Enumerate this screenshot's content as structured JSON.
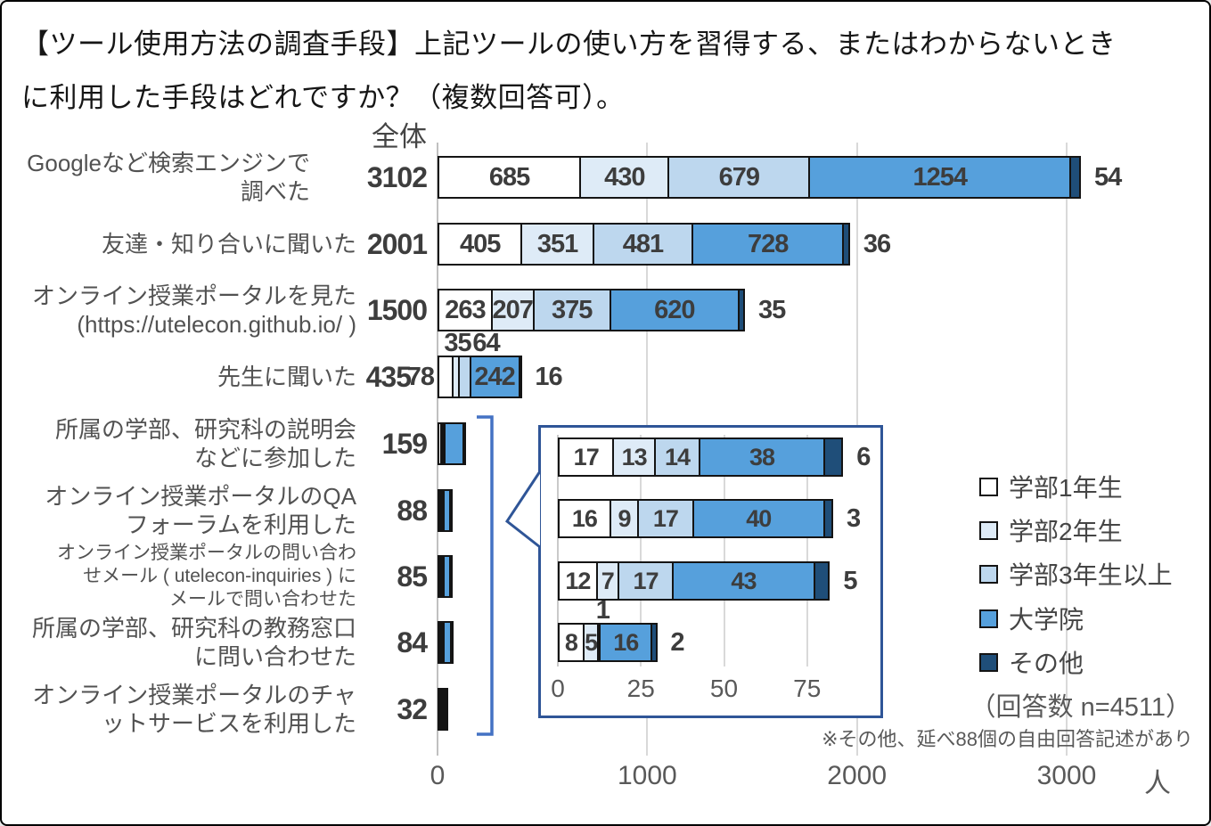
{
  "page": {
    "title_line1": "【ツール使用方法の調査手段】上記ツールの使い方を習得する、またはわからないとき",
    "title_line2": "に利用した手段はどれですか？（複数回答可）。"
  },
  "chart": {
    "column_header": "全体",
    "unit": "人",
    "note_n": "（回答数 n=4511）",
    "footnote": "※その他、延べ88個の自由回答記述があり",
    "legend": [
      {
        "label": "学部1年生",
        "color": "#FFFFFF"
      },
      {
        "label": "学部2年生",
        "color": "#DEEBF7"
      },
      {
        "label": "学部3年生以上",
        "color": "#BDD7EE"
      },
      {
        "label": "大学院",
        "color": "#56A0DC"
      },
      {
        "label": "その他",
        "color": "#1F4E79"
      }
    ]
  },
  "colors": {
    "segment_fills": [
      "#FFFFFF",
      "#DEEBF7",
      "#BDD7EE",
      "#56A0DC",
      "#1F4E79"
    ],
    "bar_border": "#141414",
    "gridline": "#D9D9D9",
    "axis_line": "#C0C0C0",
    "value_text": "#3D3D3D",
    "gray_text": "#595959",
    "bracket_blue": "#4472C4",
    "inset_border_blue": "#2F5597"
  },
  "chart_data": {
    "type": "bar",
    "stacked": true,
    "orientation": "horizontal",
    "series": [
      "学部1年生",
      "学部2年生",
      "学部3年生以上",
      "大学院",
      "その他"
    ],
    "x_axis": {
      "ticks": [
        0,
        1000,
        2000,
        3000
      ],
      "unit": "人",
      "range": [
        0,
        3000
      ]
    },
    "legend_position": "right",
    "rows": [
      {
        "category": "Googleなど検索エンジンで調べた",
        "label_lines": [
          "Googleなど検索エンジンで調べた"
        ],
        "total": 3102,
        "values": [
          685,
          430,
          679,
          1254,
          54
        ],
        "label_pos": [
          "in",
          "in",
          "in",
          "in",
          "end"
        ]
      },
      {
        "category": "友達・知り合いに聞いた",
        "label_lines": [
          "友達・知り合いに聞いた"
        ],
        "total": 2001,
        "values": [
          405,
          351,
          481,
          728,
          36
        ],
        "label_pos": [
          "in",
          "in",
          "in",
          "in",
          "end"
        ]
      },
      {
        "category": "オンライン授業ポータルを見た (https://utelecon.github.io/ )",
        "label_lines": [
          "オンライン授業ポータルを見た",
          "(https://utelecon.github.io/ )"
        ],
        "total": 1500,
        "values": [
          263,
          207,
          375,
          620,
          35
        ],
        "label_pos": [
          "in",
          "in",
          "in",
          "in",
          "end"
        ]
      },
      {
        "category": "先生に聞いた",
        "label_lines": [
          "先生に聞いた"
        ],
        "total": 435,
        "values": [
          78,
          35,
          64,
          242,
          16
        ],
        "label_pos": [
          "left",
          "above",
          "above",
          "in",
          "end"
        ]
      },
      {
        "category": "所属の学部、研究科の説明会などに参加した",
        "label_lines": [
          "所属の学部、研究科の説明会",
          "などに参加した"
        ],
        "total": 159,
        "values": null,
        "values_visual_estimate": [
          20,
          15,
          20,
          95,
          9
        ],
        "label_pos": [
          "none",
          "none",
          "none",
          "none",
          "none"
        ]
      },
      {
        "category": "オンライン授業ポータルのQAフォーラムを利用した",
        "label_lines": [
          "オンライン授業ポータルのQA",
          "フォーラムを利用した"
        ],
        "total": 88,
        "values": [
          17,
          13,
          14,
          38,
          6
        ],
        "label_pos": [
          "none",
          "none",
          "none",
          "none",
          "none"
        ]
      },
      {
        "category": "オンライン授業ポータルの問い合わせメール ( utelecon-inquiries ) にメールで問い合わせた",
        "label_lines": [
          "オンライン授業ポータルの問い合わ",
          "せメール ( utelecon-inquiries ) に",
          "メールで問い合わせた"
        ],
        "total": 85,
        "values": [
          16,
          9,
          17,
          40,
          3
        ],
        "label_pos": [
          "none",
          "none",
          "none",
          "none",
          "none"
        ]
      },
      {
        "category": "所属の学部、研究科の教務窓口に問い合わせた",
        "label_lines": [
          "所属の学部、研究科の教務窓口",
          "に問い合わせた"
        ],
        "total": 84,
        "values": [
          12,
          7,
          17,
          43,
          5
        ],
        "label_pos": [
          "none",
          "none",
          "none",
          "none",
          "none"
        ]
      },
      {
        "category": "オンライン授業ポータルのチャットサービスを利用した",
        "label_lines": [
          "オンライン授業ポータルのチャ",
          "ットサービスを利用した"
        ],
        "total": 32,
        "values": [
          8,
          5,
          1,
          16,
          2
        ],
        "label_pos": [
          "none",
          "none",
          "none",
          "none",
          "none"
        ]
      }
    ],
    "inset": {
      "description": "zoomed detail of the four smallest rows",
      "x_axis": {
        "ticks": [
          0,
          25,
          50,
          75
        ]
      },
      "rows": [
        {
          "category": "オンライン授業ポータルのQAフォーラムを利用した",
          "total": 88,
          "values": [
            17,
            13,
            14,
            38,
            6
          ],
          "label_pos": [
            "in",
            "in",
            "in",
            "in",
            "end"
          ]
        },
        {
          "category": "オンライン授業ポータルの問い合わせメール ( utelecon-inquiries ) にメールで問い合わせた",
          "total": 85,
          "values": [
            16,
            9,
            17,
            40,
            3
          ],
          "label_pos": [
            "in",
            "in",
            "in",
            "in",
            "end"
          ]
        },
        {
          "category": "所属の学部、研究科の教務窓口に問い合わせた",
          "total": 84,
          "values": [
            12,
            7,
            17,
            43,
            5
          ],
          "label_pos": [
            "in",
            "in",
            "in",
            "in",
            "end"
          ]
        },
        {
          "category": "オンライン授業ポータルのチャットサービスを利用した",
          "total": 32,
          "values": [
            8,
            5,
            1,
            16,
            2
          ],
          "label_pos": [
            "in",
            "in",
            "above",
            "in",
            "end"
          ]
        }
      ]
    }
  }
}
